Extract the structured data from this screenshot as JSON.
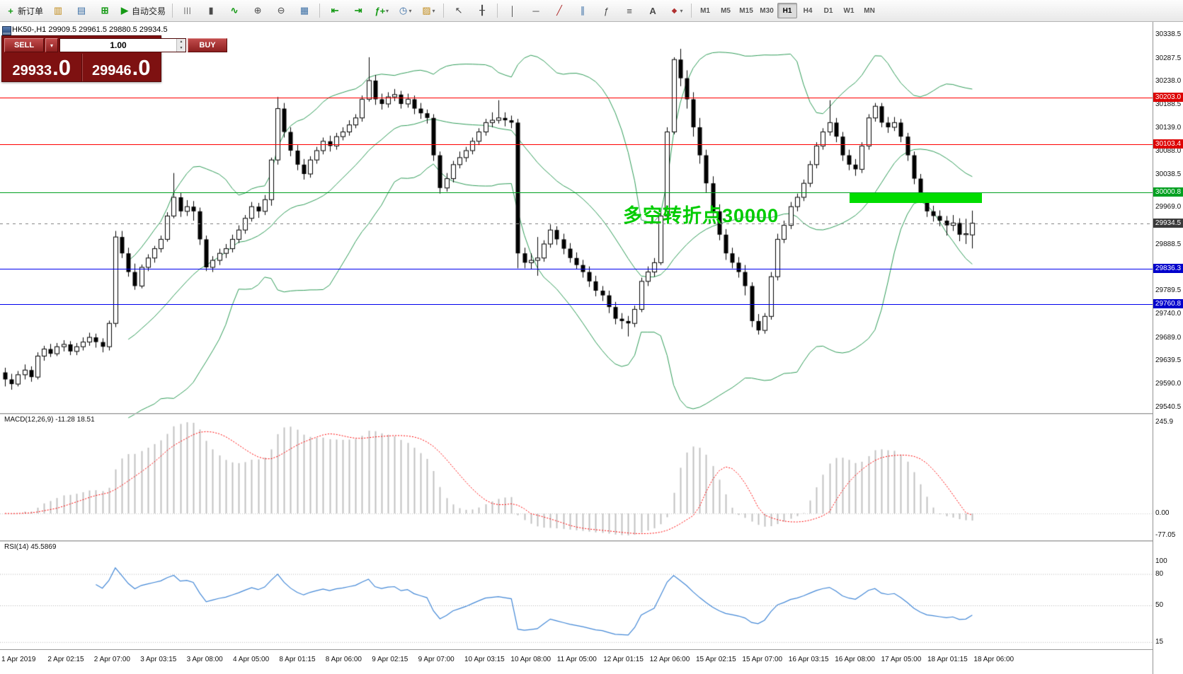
{
  "toolbar": {
    "new_order_label": "新订单",
    "autotrading_label": "自动交易",
    "timeframes": [
      "M1",
      "M5",
      "M15",
      "M30",
      "H1",
      "H4",
      "D1",
      "W1",
      "MN"
    ],
    "active_timeframe": "H1"
  },
  "icons": {
    "new-order": "+",
    "market-watch": "▥",
    "data-window": "▤",
    "navigator": "⊞",
    "autotrading": "▶",
    "chart-bars": "|||",
    "chart-candles": "▮",
    "chart-line": "∿",
    "zoom-in": "⊕",
    "zoom-out": "⊖",
    "tile-windows": "▦",
    "chart-shift": "⇤",
    "auto-scroll": "⇥",
    "indicators": "ƒ+",
    "periods": "◷",
    "templates": "▨",
    "cursor": "↖",
    "crosshair": "╂",
    "vline": "│",
    "hline": "─",
    "trendline": "╱",
    "channel": "∥",
    "fibonacci": "ƒ",
    "shapes": "≡",
    "text": "A",
    "arrows": "◆",
    "dropdown": "▾",
    "spin-up": "▲",
    "spin-down": "▼"
  },
  "trade_panel": {
    "sell_label": "SELL",
    "buy_label": "BUY",
    "volume": "1.00",
    "sell_price_small": "29933",
    "sell_price_big": ".0",
    "buy_price_small": "29946",
    "buy_price_big": ".0"
  },
  "chart": {
    "symbol_label": "HK50-,H1  29909.5 29961.5 29880.5 29934.5",
    "annotation": "多空转折点30000",
    "colors": {
      "bull": "#ffffff",
      "bear": "#000000",
      "outline": "#000000",
      "bollinger": "#2e9b57",
      "macd_hist": "#c2c2c2",
      "macd_signal": "#ff0000",
      "rsi_line": "#4287d6",
      "highlight": "#00dd00",
      "annotation": "#00cc00"
    },
    "price_axis_labels": [
      "30338.5",
      "30287.5",
      "30238.0",
      "30188.5",
      "30139.0",
      "30088.0",
      "30038.5",
      "29969.0",
      "29888.5",
      "29789.5",
      "29740.0",
      "29689.0",
      "29639.5",
      "29590.0",
      "29540.5"
    ],
    "levels": [
      {
        "label": "30203.0",
        "price": 30203.0,
        "color": "#ff0000",
        "tag": "#dd0000",
        "dashed": false
      },
      {
        "label": "30103.4",
        "price": 30103.4,
        "color": "#ff0000",
        "tag": "#dd0000",
        "dashed": false
      },
      {
        "label": "30000.8",
        "price": 30000.8,
        "color": "#00a020",
        "tag": "#00a020",
        "dashed": false
      },
      {
        "label": "29934.5",
        "price": 29934.5,
        "color": "#8a8a8a",
        "tag": "#3a3a3a",
        "dashed": true
      },
      {
        "label": "29836.3",
        "price": 29836.3,
        "color": "#0000ee",
        "tag": "#0000cc",
        "dashed": false
      },
      {
        "label": "29760.8",
        "price": 29760.8,
        "color": "#0000ee",
        "tag": "#0000cc",
        "dashed": false
      }
    ],
    "time_axis": [
      "1 Apr 2019",
      "2 Apr 02:15",
      "2 Apr 07:00",
      "3 Apr 03:15",
      "3 Apr 08:00",
      "4 Apr 05:00",
      "8 Apr 01:15",
      "8 Apr 06:00",
      "9 Apr 02:15",
      "9 Apr 07:00",
      "10 Apr 03:15",
      "10 Apr 08:00",
      "11 Apr 05:00",
      "12 Apr 01:15",
      "12 Apr 06:00",
      "15 Apr 02:15",
      "15 Apr 07:00",
      "16 Apr 03:15",
      "16 Apr 08:00",
      "17 Apr 05:00",
      "18 Apr 01:15",
      "18 Apr 06:00"
    ]
  },
  "macd": {
    "label": "MACD(12,26,9) -11.28 18.51",
    "axis": [
      "245.9",
      "0.00",
      "-77.05"
    ]
  },
  "rsi": {
    "label": "RSI(14) 45.5869",
    "axis": [
      "100",
      "80",
      "50",
      "15"
    ]
  },
  "chart_data": {
    "type": "candlestick",
    "symbol": "HK50-",
    "period": "H1",
    "price_range": [
      29540.5,
      30338.5
    ],
    "bollinger": {
      "period": 20,
      "deviation": 2
    },
    "macd_params": {
      "fast": 12,
      "slow": 26,
      "signal": 9
    },
    "rsi_params": {
      "period": 14
    },
    "candles": [
      [
        29615,
        29625,
        29585,
        29600
      ],
      [
        29600,
        29612,
        29578,
        29590
      ],
      [
        29590,
        29618,
        29585,
        29610
      ],
      [
        29610,
        29632,
        29600,
        29620
      ],
      [
        29620,
        29628,
        29595,
        29605
      ],
      [
        29605,
        29658,
        29600,
        29650
      ],
      [
        29650,
        29672,
        29640,
        29665
      ],
      [
        29665,
        29676,
        29648,
        29655
      ],
      [
        29655,
        29678,
        29650,
        29670
      ],
      [
        29670,
        29684,
        29660,
        29675
      ],
      [
        29675,
        29682,
        29652,
        29660
      ],
      [
        29660,
        29678,
        29652,
        29670
      ],
      [
        29670,
        29690,
        29662,
        29680
      ],
      [
        29680,
        29700,
        29672,
        29690
      ],
      [
        29690,
        29698,
        29668,
        29680
      ],
      [
        29680,
        29688,
        29658,
        29670
      ],
      [
        29670,
        29726,
        29662,
        29720
      ],
      [
        29720,
        29918,
        29712,
        29905
      ],
      [
        29905,
        29918,
        29860,
        29870
      ],
      [
        29870,
        29882,
        29820,
        29830
      ],
      [
        29830,
        29848,
        29792,
        29800
      ],
      [
        29800,
        29846,
        29795,
        29840
      ],
      [
        29840,
        29868,
        29832,
        29860
      ],
      [
        29860,
        29886,
        29850,
        29880
      ],
      [
        29880,
        29908,
        29872,
        29900
      ],
      [
        29900,
        29958,
        29895,
        29950
      ],
      [
        29950,
        30042,
        29945,
        29990
      ],
      [
        29990,
        30000,
        29948,
        29960
      ],
      [
        29960,
        29984,
        29950,
        29970
      ],
      [
        29970,
        29982,
        29940,
        29960
      ],
      [
        29960,
        29968,
        29888,
        29900
      ],
      [
        29900,
        29908,
        29832,
        29840
      ],
      [
        29840,
        29864,
        29830,
        29855
      ],
      [
        29855,
        29880,
        29845,
        29870
      ],
      [
        29870,
        29890,
        29860,
        29880
      ],
      [
        29880,
        29910,
        29872,
        29900
      ],
      [
        29900,
        29930,
        29892,
        29920
      ],
      [
        29920,
        29952,
        29912,
        29945
      ],
      [
        29945,
        29980,
        29938,
        29970
      ],
      [
        29970,
        29978,
        29946,
        29960
      ],
      [
        29960,
        29995,
        29952,
        29985
      ],
      [
        29985,
        30075,
        29972,
        30070
      ],
      [
        30070,
        30205,
        30060,
        30180
      ],
      [
        30180,
        30192,
        30118,
        30130
      ],
      [
        30130,
        30140,
        30078,
        30090
      ],
      [
        30090,
        30102,
        30048,
        30060
      ],
      [
        30060,
        30072,
        30028,
        30040
      ],
      [
        30040,
        30078,
        30032,
        30070
      ],
      [
        30070,
        30098,
        30062,
        30090
      ],
      [
        30090,
        30118,
        30082,
        30110
      ],
      [
        30110,
        30122,
        30088,
        30100
      ],
      [
        30100,
        30128,
        30092,
        30120
      ],
      [
        30120,
        30140,
        30112,
        30130
      ],
      [
        30130,
        30155,
        30122,
        30145
      ],
      [
        30145,
        30168,
        30138,
        30160
      ],
      [
        30160,
        30208,
        30152,
        30200
      ],
      [
        30200,
        30290,
        30195,
        30240
      ],
      [
        30240,
        30252,
        30188,
        30200
      ],
      [
        30200,
        30212,
        30178,
        30190
      ],
      [
        30190,
        30215,
        30182,
        30205
      ],
      [
        30205,
        30222,
        30196,
        30210
      ],
      [
        30210,
        30218,
        30180,
        30190
      ],
      [
        30190,
        30212,
        30182,
        30200
      ],
      [
        30200,
        30208,
        30168,
        30180
      ],
      [
        30180,
        30192,
        30158,
        30170
      ],
      [
        30170,
        30178,
        30148,
        30160
      ],
      [
        30160,
        30168,
        30068,
        30080
      ],
      [
        30080,
        30088,
        29998,
        30010
      ],
      [
        30010,
        30042,
        30002,
        30030
      ],
      [
        30030,
        30068,
        30022,
        30060
      ],
      [
        30060,
        30088,
        30052,
        30075
      ],
      [
        30075,
        30098,
        30066,
        30090
      ],
      [
        30090,
        30118,
        30082,
        30110
      ],
      [
        30110,
        30138,
        30102,
        30130
      ],
      [
        30130,
        30158,
        30122,
        30150
      ],
      [
        30150,
        30172,
        30140,
        30155
      ],
      [
        30155,
        30198,
        30148,
        30160
      ],
      [
        30160,
        30172,
        30142,
        30155
      ],
      [
        30155,
        30165,
        30138,
        30150
      ],
      [
        30150,
        30158,
        29838,
        29870
      ],
      [
        29870,
        29882,
        29838,
        29850
      ],
      [
        29850,
        29870,
        29836,
        29855
      ],
      [
        29855,
        29905,
        29822,
        29860
      ],
      [
        29860,
        29898,
        29852,
        29890
      ],
      [
        29890,
        29932,
        29882,
        29920
      ],
      [
        29920,
        29928,
        29888,
        29900
      ],
      [
        29900,
        29912,
        29868,
        29880
      ],
      [
        29880,
        29892,
        29850,
        29860
      ],
      [
        29860,
        29872,
        29836,
        29845
      ],
      [
        29845,
        29856,
        29818,
        29830
      ],
      [
        29830,
        29842,
        29798,
        29810
      ],
      [
        29810,
        29822,
        29778,
        29790
      ],
      [
        29790,
        29800,
        29768,
        29780
      ],
      [
        29780,
        29790,
        29742,
        29755
      ],
      [
        29755,
        29766,
        29718,
        29730
      ],
      [
        29730,
        29742,
        29708,
        29725
      ],
      [
        29725,
        29736,
        29692,
        29720
      ],
      [
        29720,
        29758,
        29712,
        29750
      ],
      [
        29750,
        29818,
        29744,
        29810
      ],
      [
        29810,
        29842,
        29800,
        29830
      ],
      [
        29830,
        29860,
        29820,
        29850
      ],
      [
        29850,
        29958,
        29845,
        29950
      ],
      [
        29950,
        30140,
        29945,
        30130
      ],
      [
        30130,
        30290,
        30125,
        30285
      ],
      [
        30285,
        30308,
        30228,
        30245
      ],
      [
        30245,
        30262,
        30180,
        30200
      ],
      [
        30200,
        30215,
        30120,
        30140
      ],
      [
        30140,
        30160,
        30062,
        30080
      ],
      [
        30080,
        30092,
        30000,
        30020
      ],
      [
        30020,
        30035,
        29945,
        29960
      ],
      [
        29960,
        29975,
        29898,
        29910
      ],
      [
        29910,
        29922,
        29856,
        29870
      ],
      [
        29870,
        29882,
        29838,
        29850
      ],
      [
        29850,
        29862,
        29818,
        29830
      ],
      [
        29830,
        29845,
        29780,
        29800
      ],
      [
        29800,
        29808,
        29712,
        29725
      ],
      [
        29725,
        29740,
        29696,
        29705
      ],
      [
        29705,
        29742,
        29698,
        29735
      ],
      [
        29735,
        29830,
        29728,
        29820
      ],
      [
        29820,
        29912,
        29812,
        29900
      ],
      [
        29900,
        29940,
        29892,
        29930
      ],
      [
        29930,
        29980,
        29922,
        29970
      ],
      [
        29970,
        29998,
        29960,
        29990
      ],
      [
        29990,
        30028,
        29982,
        30020
      ],
      [
        30020,
        30068,
        30012,
        30060
      ],
      [
        30060,
        30108,
        30052,
        30100
      ],
      [
        30100,
        30138,
        30092,
        30130
      ],
      [
        30130,
        30198,
        30122,
        30150
      ],
      [
        30150,
        30160,
        30108,
        30120
      ],
      [
        30120,
        30130,
        30068,
        30080
      ],
      [
        30080,
        30092,
        30048,
        30060
      ],
      [
        30060,
        30072,
        30036,
        30050
      ],
      [
        30050,
        30108,
        30042,
        30100
      ],
      [
        30100,
        30168,
        30092,
        30160
      ],
      [
        30160,
        30192,
        30152,
        30185
      ],
      [
        30185,
        30192,
        30140,
        30150
      ],
      [
        30150,
        30162,
        30128,
        30140
      ],
      [
        30140,
        30162,
        30132,
        30150
      ],
      [
        30150,
        30158,
        30108,
        30120
      ],
      [
        30120,
        30128,
        30068,
        30080
      ],
      [
        30080,
        30088,
        30018,
        30030
      ],
      [
        30030,
        30040,
        29978,
        29990
      ],
      [
        29990,
        30000,
        29948,
        29960
      ],
      [
        29960,
        29972,
        29938,
        29950
      ],
      [
        29950,
        29962,
        29928,
        29940
      ],
      [
        29940,
        29950,
        29908,
        29930
      ],
      [
        29930,
        29952,
        29918,
        29935
      ],
      [
        29935,
        29945,
        29896,
        29910
      ],
      [
        29910,
        29944,
        29890,
        29912
      ],
      [
        29909.5,
        29961.5,
        29880.5,
        29934.5
      ]
    ]
  }
}
